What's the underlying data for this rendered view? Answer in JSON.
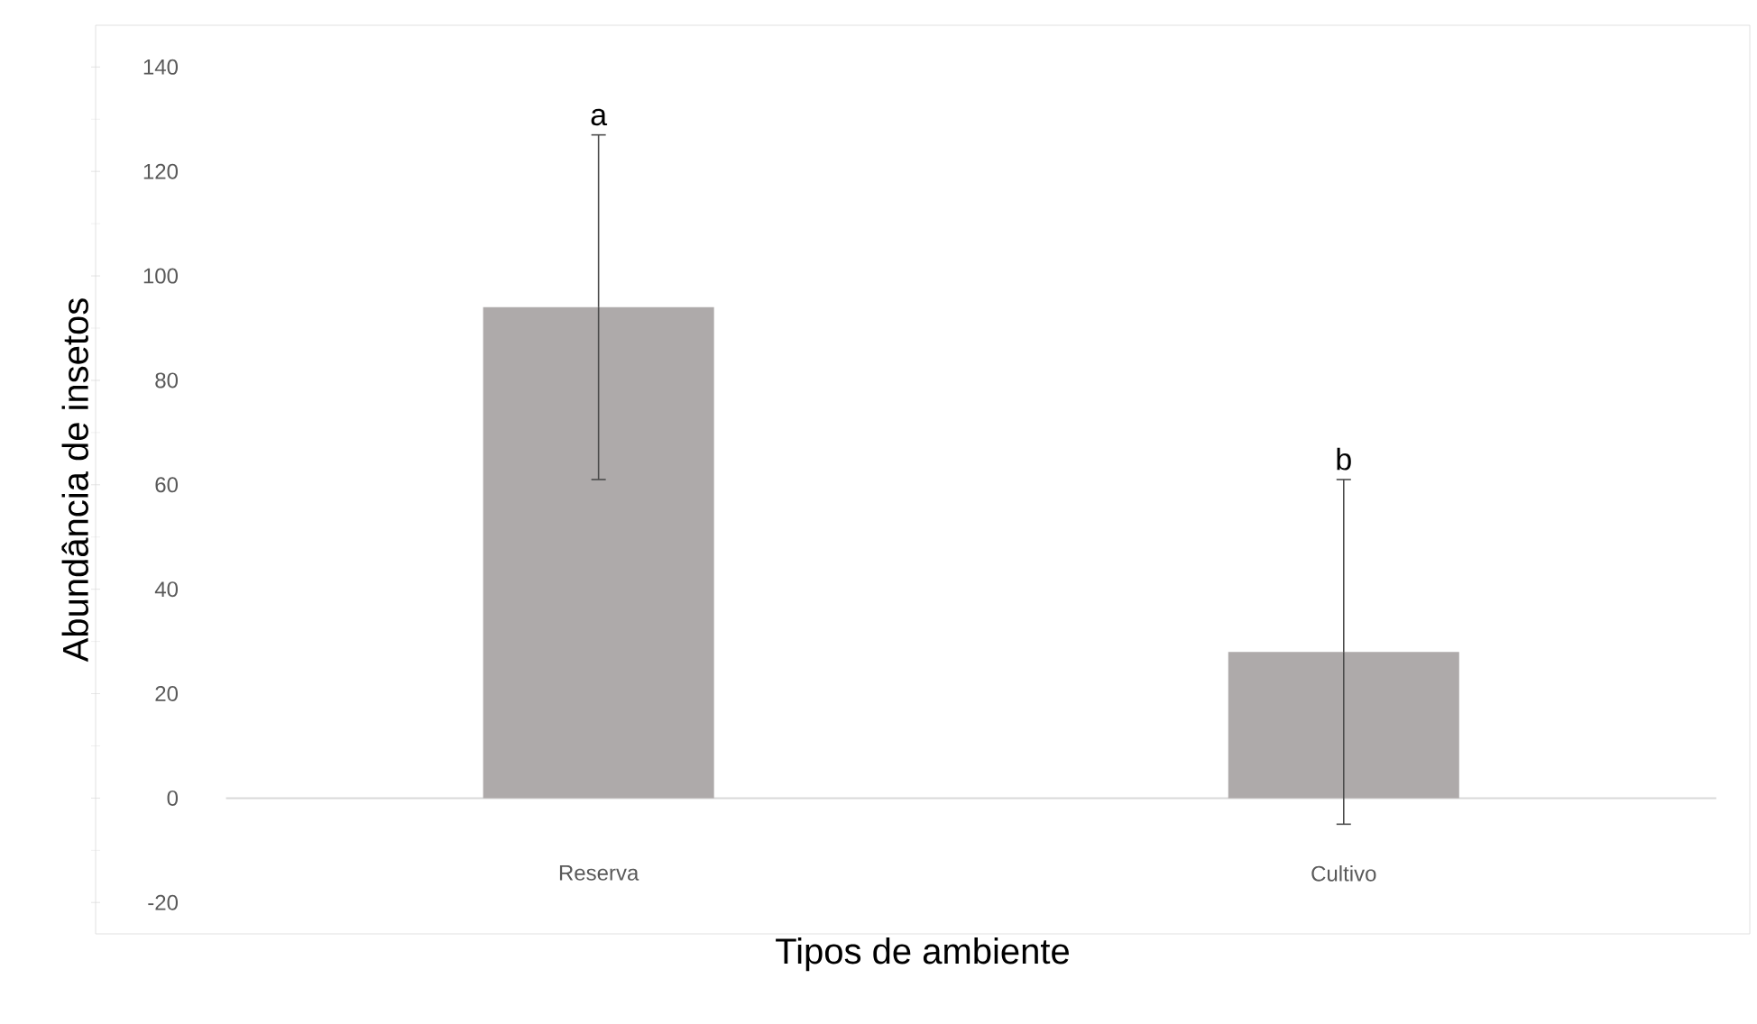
{
  "chart_data": {
    "type": "bar",
    "xlabel": "Tipos de ambiente",
    "ylabel": "Abundância de insetos",
    "categories": [
      "Reserva",
      "Cultivo"
    ],
    "values": [
      94,
      28
    ],
    "errors": [
      33,
      33
    ],
    "color": "#aeaaaa",
    "ylim": [
      -26,
      148
    ],
    "yticks": [
      -20,
      0,
      20,
      40,
      60,
      80,
      100,
      120,
      140
    ],
    "annotations": [
      "a",
      "b"
    ]
  }
}
